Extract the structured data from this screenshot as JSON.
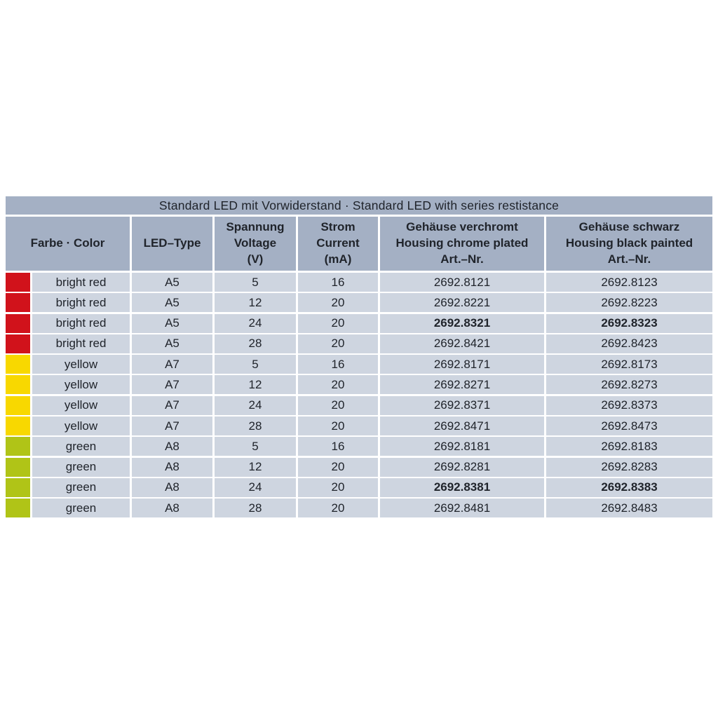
{
  "table": {
    "title": "Standard LED mit Vorwiderstand · Standard LED with series restistance",
    "columns": [
      {
        "id": "color",
        "label": "Farbe · Color"
      },
      {
        "id": "type",
        "label": "LED–Type"
      },
      {
        "id": "voltage",
        "label": "Spannung\nVoltage\n(V)"
      },
      {
        "id": "current",
        "label": "Strom\nCurrent\n(mA)"
      },
      {
        "id": "chrome",
        "label": "Gehäuse verchromt\nHousing chrome plated\nArt.–Nr."
      },
      {
        "id": "black",
        "label": "Gehäuse schwarz\nHousing black painted\nArt.–Nr."
      }
    ],
    "rows": [
      {
        "swatch": "#d1121b",
        "color": "bright red",
        "type": "A5",
        "voltage": "5",
        "current": "16",
        "chrome": "2692.8121",
        "black": "2692.8123",
        "bold": false
      },
      {
        "swatch": "#d1121b",
        "color": "bright red",
        "type": "A5",
        "voltage": "12",
        "current": "20",
        "chrome": "2692.8221",
        "black": "2692.8223",
        "bold": false
      },
      {
        "swatch": "#d1121b",
        "color": "bright red",
        "type": "A5",
        "voltage": "24",
        "current": "20",
        "chrome": "2692.8321",
        "black": "2692.8323",
        "bold": true
      },
      {
        "swatch": "#d1121b",
        "color": "bright red",
        "type": "A5",
        "voltage": "28",
        "current": "20",
        "chrome": "2692.8421",
        "black": "2692.8423",
        "bold": false
      },
      {
        "swatch": "#f8d800",
        "color": "yellow",
        "type": "A7",
        "voltage": "5",
        "current": "16",
        "chrome": "2692.8171",
        "black": "2692.8173",
        "bold": false
      },
      {
        "swatch": "#f8d800",
        "color": "yellow",
        "type": "A7",
        "voltage": "12",
        "current": "20",
        "chrome": "2692.8271",
        "black": "2692.8273",
        "bold": false
      },
      {
        "swatch": "#f8d800",
        "color": "yellow",
        "type": "A7",
        "voltage": "24",
        "current": "20",
        "chrome": "2692.8371",
        "black": "2692.8373",
        "bold": false
      },
      {
        "swatch": "#f8d800",
        "color": "yellow",
        "type": "A7",
        "voltage": "28",
        "current": "20",
        "chrome": "2692.8471",
        "black": "2692.8473",
        "bold": false
      },
      {
        "swatch": "#b0c417",
        "color": "green",
        "type": "A8",
        "voltage": "5",
        "current": "16",
        "chrome": "2692.8181",
        "black": "2692.8183",
        "bold": false
      },
      {
        "swatch": "#b0c417",
        "color": "green",
        "type": "A8",
        "voltage": "12",
        "current": "20",
        "chrome": "2692.8281",
        "black": "2692.8283",
        "bold": false
      },
      {
        "swatch": "#b0c417",
        "color": "green",
        "type": "A8",
        "voltage": "24",
        "current": "20",
        "chrome": "2692.8381",
        "black": "2692.8383",
        "bold": true
      },
      {
        "swatch": "#b0c417",
        "color": "green",
        "type": "A8",
        "voltage": "28",
        "current": "20",
        "chrome": "2692.8481",
        "black": "2692.8483",
        "bold": false
      }
    ]
  },
  "colors": {
    "page_bg": "#ffffff",
    "header_bg": "#a4b0c4",
    "row_bg": "#ced5e0",
    "separator": "#ffffff",
    "text": "#20242b",
    "swatch_bright_red": "#d1121b",
    "swatch_yellow": "#f8d800",
    "swatch_green": "#b0c417"
  }
}
